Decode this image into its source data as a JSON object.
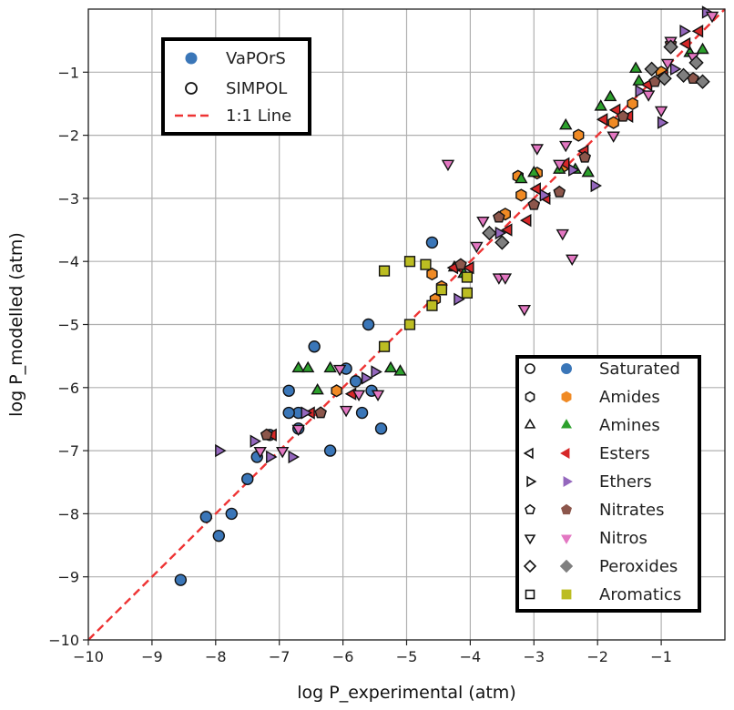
{
  "chart_data": {
    "type": "scatter",
    "title": "",
    "xlabel": "log P_experimental (atm)",
    "ylabel": "log P_modelled (atm)",
    "xlim": [
      -10,
      0
    ],
    "ylim": [
      -10,
      0
    ],
    "xticks": [
      -10,
      -9,
      -8,
      -7,
      -6,
      -5,
      -4,
      -3,
      -2,
      -1
    ],
    "yticks": [
      -10,
      -9,
      -8,
      -7,
      -6,
      -5,
      -4,
      -3,
      -2,
      -1
    ],
    "xtick_labels": [
      "−10",
      "−9",
      "−8",
      "−7",
      "−6",
      "−5",
      "−4",
      "−3",
      "−2",
      "−1"
    ],
    "ytick_labels": [
      "−10",
      "−9",
      "−8",
      "−7",
      "−6",
      "−5",
      "−4",
      "−3",
      "−2",
      "−1"
    ],
    "grid": true,
    "legend_top": {
      "placement": "upper-left",
      "entries": [
        {
          "label": "VaPOrS",
          "marker": "filled-circle"
        },
        {
          "label": "SIMPOL",
          "marker": "open-circle"
        },
        {
          "label": "1:1 Line",
          "marker": "dashed-line"
        }
      ]
    },
    "legend_classes": {
      "placement": "lower-right",
      "entries": [
        {
          "label": "Saturated",
          "marker": "circle",
          "color": "#3a76b8"
        },
        {
          "label": "Amides",
          "marker": "hexagon",
          "color": "#f08a24"
        },
        {
          "label": "Amines",
          "marker": "triangle-up",
          "color": "#2ca02c"
        },
        {
          "label": "Esters",
          "marker": "triangle-left",
          "color": "#d62728"
        },
        {
          "label": "Ethers",
          "marker": "triangle-right",
          "color": "#9467bd"
        },
        {
          "label": "Nitrates",
          "marker": "pentagon",
          "color": "#8c564b"
        },
        {
          "label": "Nitros",
          "marker": "triangle-down",
          "color": "#e377c2"
        },
        {
          "label": "Peroxides",
          "marker": "diamond",
          "color": "#7f7f7f"
        },
        {
          "label": "Aromatics",
          "marker": "square",
          "color": "#bcbd22"
        }
      ]
    },
    "reference_line": {
      "name": "1:1 Line",
      "color": "#ee3333",
      "points": [
        [
          -10,
          -10
        ],
        [
          0,
          0
        ]
      ]
    },
    "series": [
      {
        "name": "Saturated",
        "marker": "circle",
        "color": "#3a76b8",
        "points": [
          [
            -8.55,
            -9.05
          ],
          [
            -7.95,
            -8.35
          ],
          [
            -8.15,
            -8.05
          ],
          [
            -7.75,
            -8.0
          ],
          [
            -7.5,
            -7.45
          ],
          [
            -7.35,
            -7.1
          ],
          [
            -7.15,
            -6.75
          ],
          [
            -6.7,
            -6.65
          ],
          [
            -6.7,
            -6.4
          ],
          [
            -6.85,
            -6.4
          ],
          [
            -6.85,
            -6.05
          ],
          [
            -6.45,
            -5.35
          ],
          [
            -6.2,
            -7.0
          ],
          [
            -5.6,
            -5.0
          ],
          [
            -5.4,
            -6.65
          ],
          [
            -5.7,
            -6.4
          ],
          [
            -5.55,
            -6.05
          ],
          [
            -4.6,
            -3.7
          ],
          [
            -5.95,
            -5.7
          ],
          [
            -5.8,
            -5.9
          ]
        ]
      },
      {
        "name": "Amides",
        "marker": "hexagon",
        "color": "#f08a24",
        "points": [
          [
            -4.6,
            -4.2
          ],
          [
            -4.55,
            -4.6
          ],
          [
            -4.45,
            -4.4
          ],
          [
            -3.45,
            -3.25
          ],
          [
            -3.2,
            -2.95
          ],
          [
            -2.95,
            -2.6
          ],
          [
            -2.55,
            -2.5
          ],
          [
            -1.75,
            -1.8
          ],
          [
            -1.45,
            -1.5
          ],
          [
            -1.0,
            -1.0
          ],
          [
            -6.1,
            -6.05
          ],
          [
            -3.25,
            -2.65
          ],
          [
            -2.3,
            -2.0
          ]
        ]
      },
      {
        "name": "Amines",
        "marker": "triangle-up",
        "color": "#2ca02c",
        "points": [
          [
            -6.7,
            -5.7
          ],
          [
            -6.4,
            -6.05
          ],
          [
            -6.55,
            -5.7
          ],
          [
            -6.2,
            -5.7
          ],
          [
            -5.1,
            -5.75
          ],
          [
            -5.25,
            -5.7
          ],
          [
            -4.25,
            -4.1
          ],
          [
            -4.1,
            -4.2
          ],
          [
            -3.0,
            -2.6
          ],
          [
            -2.6,
            -2.55
          ],
          [
            -2.35,
            -2.55
          ],
          [
            -2.15,
            -2.6
          ],
          [
            -1.95,
            -1.55
          ],
          [
            -1.8,
            -1.4
          ],
          [
            -1.4,
            -0.95
          ],
          [
            -1.35,
            -1.15
          ],
          [
            -0.55,
            -0.7
          ],
          [
            -0.35,
            -0.65
          ],
          [
            -3.2,
            -2.7
          ],
          [
            -2.5,
            -1.85
          ]
        ]
      },
      {
        "name": "Esters",
        "marker": "triangle-left",
        "color": "#d62728",
        "points": [
          [
            -7.1,
            -6.75
          ],
          [
            -6.5,
            -6.4
          ],
          [
            -5.85,
            -6.1
          ],
          [
            -4.0,
            -4.1
          ],
          [
            -3.4,
            -3.5
          ],
          [
            -3.1,
            -3.35
          ],
          [
            -2.8,
            -3.0
          ],
          [
            -2.5,
            -2.45
          ],
          [
            -2.2,
            -2.25
          ],
          [
            -1.9,
            -1.75
          ],
          [
            -1.7,
            -1.6
          ],
          [
            -1.5,
            -1.7
          ],
          [
            -1.2,
            -1.2
          ],
          [
            -0.95,
            -1.05
          ],
          [
            -0.6,
            -0.55
          ],
          [
            -0.4,
            -0.35
          ],
          [
            -4.25,
            -4.1
          ],
          [
            -2.95,
            -2.85
          ]
        ]
      },
      {
        "name": "Ethers",
        "marker": "triangle-right",
        "color": "#9467bd",
        "points": [
          [
            -7.95,
            -7.0
          ],
          [
            -7.4,
            -6.85
          ],
          [
            -7.15,
            -7.1
          ],
          [
            -6.8,
            -7.1
          ],
          [
            -6.6,
            -6.4
          ],
          [
            -5.65,
            -5.85
          ],
          [
            -5.5,
            -5.75
          ],
          [
            -4.2,
            -4.6
          ],
          [
            -3.55,
            -3.55
          ],
          [
            -2.85,
            -2.95
          ],
          [
            -2.4,
            -2.55
          ],
          [
            -2.05,
            -2.8
          ],
          [
            -1.35,
            -1.3
          ],
          [
            -1.0,
            -1.8
          ],
          [
            -0.8,
            -0.95
          ],
          [
            -0.3,
            -0.05
          ],
          [
            -0.65,
            -0.35
          ]
        ]
      },
      {
        "name": "Nitrates",
        "marker": "pentagon",
        "color": "#8c564b",
        "points": [
          [
            -7.2,
            -6.75
          ],
          [
            -6.35,
            -6.4
          ],
          [
            -4.15,
            -4.05
          ],
          [
            -3.55,
            -3.3
          ],
          [
            -3.0,
            -3.1
          ],
          [
            -2.6,
            -2.9
          ],
          [
            -2.2,
            -2.35
          ],
          [
            -1.6,
            -1.7
          ],
          [
            -1.1,
            -1.15
          ],
          [
            -0.85,
            -0.55
          ],
          [
            -0.5,
            -1.1
          ]
        ]
      },
      {
        "name": "Nitros",
        "marker": "triangle-down",
        "color": "#e377c2",
        "points": [
          [
            -7.3,
            -7.0
          ],
          [
            -6.95,
            -7.0
          ],
          [
            -6.7,
            -6.65
          ],
          [
            -6.05,
            -5.7
          ],
          [
            -5.75,
            -6.1
          ],
          [
            -5.45,
            -6.1
          ],
          [
            -3.8,
            -3.35
          ],
          [
            -3.55,
            -4.25
          ],
          [
            -3.45,
            -4.25
          ],
          [
            -3.15,
            -4.75
          ],
          [
            -2.95,
            -2.2
          ],
          [
            -2.4,
            -3.95
          ],
          [
            -2.55,
            -3.55
          ],
          [
            -2.5,
            -2.15
          ],
          [
            -1.75,
            -2.0
          ],
          [
            -1.2,
            -1.35
          ],
          [
            -1.0,
            -1.6
          ],
          [
            -0.9,
            -0.85
          ],
          [
            -0.5,
            -0.75
          ],
          [
            -0.2,
            -0.1
          ],
          [
            -0.85,
            -0.5
          ],
          [
            -5.95,
            -6.35
          ],
          [
            -3.9,
            -3.75
          ],
          [
            -2.6,
            -2.45
          ],
          [
            -4.35,
            -2.45
          ]
        ]
      },
      {
        "name": "Peroxides",
        "marker": "diamond",
        "color": "#7f7f7f",
        "points": [
          [
            -3.7,
            -3.55
          ],
          [
            -3.5,
            -3.7
          ],
          [
            -1.15,
            -0.95
          ],
          [
            -0.95,
            -1.1
          ],
          [
            -0.85,
            -0.6
          ],
          [
            -0.65,
            -1.05
          ],
          [
            -0.45,
            -0.85
          ],
          [
            -0.35,
            -1.15
          ]
        ]
      },
      {
        "name": "Aromatics",
        "marker": "square",
        "color": "#bcbd22",
        "points": [
          [
            -5.35,
            -4.15
          ],
          [
            -4.95,
            -4.0
          ],
          [
            -4.95,
            -5.0
          ],
          [
            -5.35,
            -5.35
          ],
          [
            -4.45,
            -4.45
          ],
          [
            -4.05,
            -4.5
          ],
          [
            -4.05,
            -4.25
          ],
          [
            -4.6,
            -4.7
          ],
          [
            -4.7,
            -4.05
          ]
        ]
      }
    ]
  }
}
